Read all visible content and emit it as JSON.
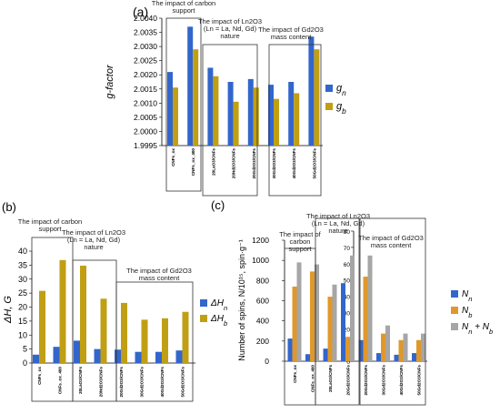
{
  "chart_data": [
    {
      "panel_label": "(a)",
      "type": "bar",
      "ylabel": "g-factor",
      "ylim": [
        1.9995,
        2.004
      ],
      "yticks": [
        1.9995,
        2.0,
        2.0005,
        2.001,
        2.0015,
        2.002,
        2.0025,
        2.003,
        2.0035,
        2.004
      ],
      "ytick_labels": [
        "1.9995",
        "2.0000",
        "2.0005",
        "2.0010",
        "2.0015",
        "2.0020",
        "2.0025",
        "2.0030",
        "2.0035",
        "2.0040"
      ],
      "categories": [
        "CNFs_ox",
        "CNFs_ox_400",
        "20LaO3/CNFs",
        "20Nd2O3/CNFs",
        "20Gd2O3/CNFs",
        "30Gd2O3/CNFs",
        "40Gd2O3/CNFs",
        "50Gd2O3/CNFs"
      ],
      "series": [
        {
          "name": "g",
          "sub": "n",
          "color": "#3366cc",
          "values": [
            2.0021,
            2.0037,
            2.00225,
            2.00175,
            2.00185,
            2.00165,
            2.00175,
            2.00335
          ]
        },
        {
          "name": "g",
          "sub": "b",
          "color": "#c09f14",
          "values": [
            2.00155,
            2.0029,
            2.00195,
            2.00105,
            2.00155,
            2.00115,
            2.00135,
            2.0029
          ]
        }
      ],
      "legend_position": "right",
      "annotations": [
        {
          "text_lines": [
            "The impact of carbon",
            "support"
          ]
        },
        {
          "text_lines": [
            "The impact of Ln2O3",
            "(Ln = La, Nd, Gd)",
            "nature"
          ]
        },
        {
          "text_lines": [
            "The impact of Gd2O3",
            "mass content"
          ]
        }
      ]
    },
    {
      "panel_label": "(b)",
      "type": "bar",
      "ylabel": "ΔH, G",
      "ylim": [
        0,
        40
      ],
      "yticks": [
        0,
        5,
        10,
        15,
        20,
        25,
        30,
        35,
        40
      ],
      "ytick_labels": [
        "0",
        "5",
        "10",
        "15",
        "20",
        "25",
        "30",
        "35",
        "40"
      ],
      "categories": [
        "CNFs_ox",
        "CNFs_ox_400",
        "20LaO3/CNFs",
        "20Nd2O3/CNFs",
        "20Gd2O3/CNFs",
        "30Gd2O3/CNFs",
        "40Gd2O3/CNFs",
        "50Gd2O3/CNFs"
      ],
      "series": [
        {
          "name": "ΔH",
          "sub": "n",
          "color": "#3366cc",
          "values": [
            3.0,
            5.8,
            8.0,
            5.0,
            4.8,
            4.0,
            4.0,
            4.5
          ]
        },
        {
          "name": "ΔH",
          "sub": "b",
          "color": "#c09f14",
          "values": [
            25.8,
            36.8,
            34.8,
            23.0,
            21.5,
            15.5,
            16.0,
            18.3
          ]
        }
      ],
      "legend_position": "right",
      "annotations": [
        {
          "text_lines": [
            "The impact of carbon",
            "support"
          ]
        },
        {
          "text_lines": [
            "The impact of Ln2O3",
            "(Ln = La, Nd, Gd)",
            "nature"
          ]
        },
        {
          "text_lines": [
            "The impact of Gd2O3",
            "mass content"
          ]
        }
      ]
    },
    {
      "panel_label": "(c)",
      "type": "bar",
      "ylabel": "Number of spins, N/10¹⁵, spin·g⁻¹",
      "ylim_left": [
        0,
        1200
      ],
      "yticks_left": [
        0,
        200,
        400,
        600,
        800,
        1000,
        1200
      ],
      "ytick_labels_left": [
        "0",
        "200",
        "400",
        "600",
        "800",
        "1000",
        "1200"
      ],
      "ylim_right": [
        0,
        80
      ],
      "yticks_right": [
        0,
        10,
        20,
        30,
        40,
        50,
        60,
        70,
        80
      ],
      "ytick_labels_right": [
        "0",
        "10",
        "20",
        "30",
        "40",
        "50",
        "60",
        "70",
        "80"
      ],
      "categories": [
        "CNFs_ox",
        "CNFs_ox_400",
        "20LaO3/CNFs",
        "20Gd2O3/CNFs",
        "20Gd2O3/CNFs",
        "30Gd2O3/CNFs",
        "40Gd2O3/CNFs",
        "50Gd2O3/CNFs"
      ],
      "axis_per_category": [
        "left",
        "left",
        "left",
        "right",
        "right",
        "right",
        "right",
        "right"
      ],
      "series": [
        {
          "name": "N",
          "sub": "n",
          "color": "#3366cc",
          "values": [
            225,
            70,
            125,
            48,
            13,
            5,
            4,
            5
          ]
        },
        {
          "name": "N",
          "sub": "b",
          "color": "#e0982a",
          "values": [
            740,
            890,
            640,
            15,
            52,
            17,
            13,
            13
          ]
        },
        {
          "name": "N",
          "sub": "n",
          "suffix": " + N",
          "suffix_sub": "b",
          "color": "#a6a6a6",
          "values": [
            980,
            960,
            760,
            65,
            65,
            22,
            17,
            17
          ]
        }
      ],
      "legend_position": "right",
      "annotations": [
        {
          "text_lines": [
            "The impact of",
            "carbon",
            "support"
          ]
        },
        {
          "text_lines": [
            "The impact of Ln2O3",
            "(Ln = La, Nd, Gd)",
            "nature"
          ]
        },
        {
          "text_lines": [
            "The impact of Gd2O3",
            "mass content"
          ]
        }
      ]
    }
  ]
}
